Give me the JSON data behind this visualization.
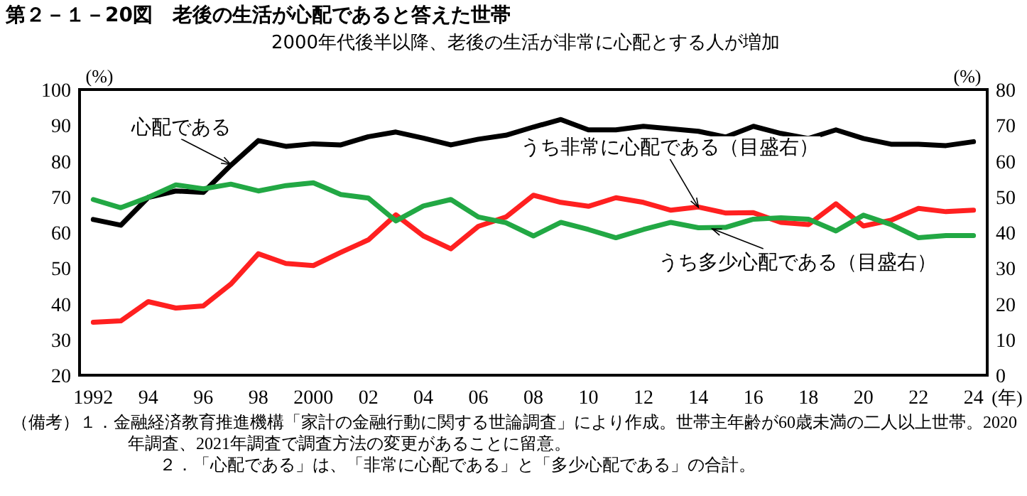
{
  "chart_data": {
    "type": "line",
    "title": "第２－１－20図　老後の生活が心配であると答えた世帯",
    "subtitle": "2000年代後半以降、老後の生活が非常に心配とする人が増加",
    "ylabel": "(%)",
    "y2label": "(%)",
    "xlabel": "(年)",
    "x": [
      1992,
      1993,
      1994,
      1995,
      1996,
      1997,
      1998,
      1999,
      2000,
      2001,
      2002,
      2003,
      2004,
      2005,
      2006,
      2007,
      2008,
      2009,
      2010,
      2011,
      2012,
      2013,
      2014,
      2015,
      2016,
      2017,
      2018,
      2019,
      2020,
      2021,
      2022,
      2023,
      2024
    ],
    "series": [
      {
        "color": "#000000",
        "values": [
          63.6,
          62.0,
          69.8,
          71.6,
          71.2,
          78.8,
          85.7,
          84.1,
          84.8,
          84.5,
          86.8,
          88.1,
          86.4,
          84.5,
          86.1,
          87.2,
          89.5,
          91.6,
          88.7,
          88.7,
          89.7,
          89.0,
          88.3,
          86.7,
          89.7,
          87.7,
          86.3,
          88.7,
          86.3,
          84.7,
          84.7,
          84.3,
          85.4
        ]
      },
      {
        "color": "#ff2020",
        "axis": "y2",
        "values": [
          14.8,
          15.2,
          20.6,
          18.8,
          19.4,
          25.5,
          34.0,
          31.3,
          30.7,
          34.4,
          37.9,
          44.9,
          39.0,
          35.4,
          41.7,
          44.3,
          50.4,
          48.4,
          47.3,
          49.7,
          48.4,
          46.2,
          47.1,
          45.4,
          45.5,
          42.8,
          42.2,
          48.0,
          41.8,
          43.4,
          46.7,
          45.8,
          46.2
        ]
      },
      {
        "color": "#22a844",
        "axis": "y2",
        "values": [
          49.2,
          46.9,
          49.8,
          53.3,
          52.2,
          53.5,
          51.6,
          53.1,
          53.9,
          50.6,
          49.6,
          43.2,
          47.4,
          49.2,
          44.3,
          42.7,
          39.0,
          42.8,
          40.8,
          38.5,
          40.8,
          42.8,
          41.3,
          41.4,
          43.7,
          44.1,
          43.7,
          40.4,
          44.8,
          42.2,
          38.5,
          39.1,
          39.1
        ]
      }
    ],
    "xlim": [
      1991.5,
      2024.5
    ],
    "xticks": [
      {
        "value": 1992,
        "label": "1992"
      },
      {
        "value": 1994,
        "label": "94"
      },
      {
        "value": 1996,
        "label": "96"
      },
      {
        "value": 1998,
        "label": "98"
      },
      {
        "value": 2000,
        "label": "2000"
      },
      {
        "value": 2002,
        "label": "02"
      },
      {
        "value": 2004,
        "label": "04"
      },
      {
        "value": 2006,
        "label": "06"
      },
      {
        "value": 2008,
        "label": "08"
      },
      {
        "value": 2010,
        "label": "10"
      },
      {
        "value": 2012,
        "label": "12"
      },
      {
        "value": 2014,
        "label": "14"
      },
      {
        "value": 2016,
        "label": "16"
      },
      {
        "value": 2018,
        "label": "18"
      },
      {
        "value": 2020,
        "label": "20"
      },
      {
        "value": 2022,
        "label": "22"
      },
      {
        "value": 2024,
        "label": "24"
      }
    ],
    "ylim": [
      20,
      100
    ],
    "yticks": [
      20,
      30,
      40,
      50,
      60,
      70,
      80,
      90,
      100
    ],
    "y2lim": [
      0,
      80
    ],
    "y2ticks": [
      0,
      10,
      20,
      30,
      40,
      50,
      60,
      70,
      80
    ],
    "grid": false,
    "marker": "none",
    "line_style": "solid",
    "annotations": [
      {
        "text": "心配である",
        "x": 1997,
        "y": 79
      },
      {
        "text": "うち非常に心配である（目盛右）",
        "x": 2014,
        "y": 67
      },
      {
        "text": "うち多少心配である（目盛右）",
        "x": 2014.5,
        "y": 61
      },
      "（備考）１．金融経済教育推進機構「家計の金融行動に関する世論調査」により作成。世帯主年齢が60歳未満の二人以上世帯。2020年調査、2021年調査で調査方法の変更があることに留意。",
      "２．「心配である」は、「非常に心配である」と「多少心配である」の合計。"
    ]
  }
}
